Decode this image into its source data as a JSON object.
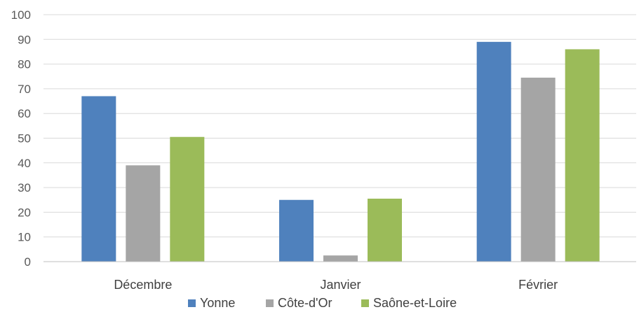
{
  "chart_data": {
    "type": "bar",
    "categories": [
      "Décembre",
      "Janvier",
      "Février"
    ],
    "series": [
      {
        "name": "Yonne",
        "values": [
          67,
          25,
          89
        ],
        "color": "#4f81bd"
      },
      {
        "name": "Côte-d'Or",
        "values": [
          39,
          2.5,
          74.5
        ],
        "color": "#a5a5a5"
      },
      {
        "name": "Saône-et-Loire",
        "values": [
          50.5,
          25.5,
          86
        ],
        "color": "#9bbb59"
      }
    ],
    "ylim": [
      0,
      100
    ],
    "yticks": [
      0,
      10,
      20,
      30,
      40,
      50,
      60,
      70,
      80,
      90,
      100
    ],
    "grid": true,
    "legend_position": "bottom"
  }
}
